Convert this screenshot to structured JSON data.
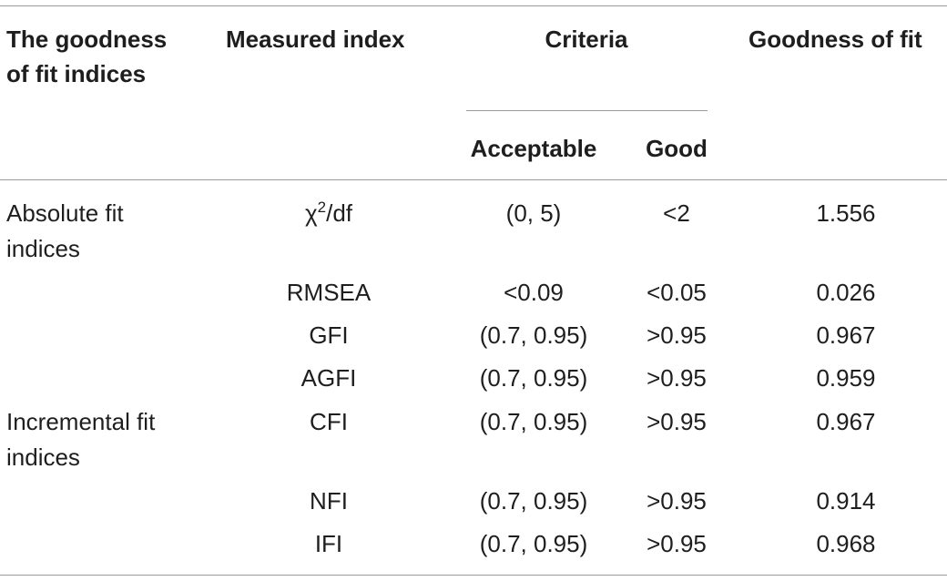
{
  "headers": {
    "col1_line1": "The goodness",
    "col1_line2": "of fit indices",
    "col2": "Measured index",
    "criteria": "Criteria",
    "col5": "Goodness of fit",
    "acceptable": "Acceptable",
    "good": "Good"
  },
  "groups": [
    {
      "line1": "Absolute fit",
      "line2": "indices"
    },
    {
      "line1": "Incremental fit",
      "line2": "indices"
    }
  ],
  "chi_symbol": "χ",
  "chi_sup": "2",
  "chi_suffix": "/df",
  "rows": [
    {
      "index": "χ2/df",
      "acceptable": "(0, 5)",
      "good": "<2",
      "fit": "1.556"
    },
    {
      "index": "RMSEA",
      "acceptable": "<0.09",
      "good": "<0.05",
      "fit": "0.026"
    },
    {
      "index": "GFI",
      "acceptable": "(0.7, 0.95)",
      "good": ">0.95",
      "fit": "0.967"
    },
    {
      "index": "AGFI",
      "acceptable": "(0.7, 0.95)",
      "good": ">0.95",
      "fit": "0.959"
    },
    {
      "index": "CFI",
      "acceptable": "(0.7, 0.95)",
      "good": ">0.95",
      "fit": "0.967"
    },
    {
      "index": "NFI",
      "acceptable": "(0.7, 0.95)",
      "good": ">0.95",
      "fit": "0.914"
    },
    {
      "index": "IFI",
      "acceptable": "(0.7, 0.95)",
      "good": ">0.95",
      "fit": "0.968"
    }
  ]
}
